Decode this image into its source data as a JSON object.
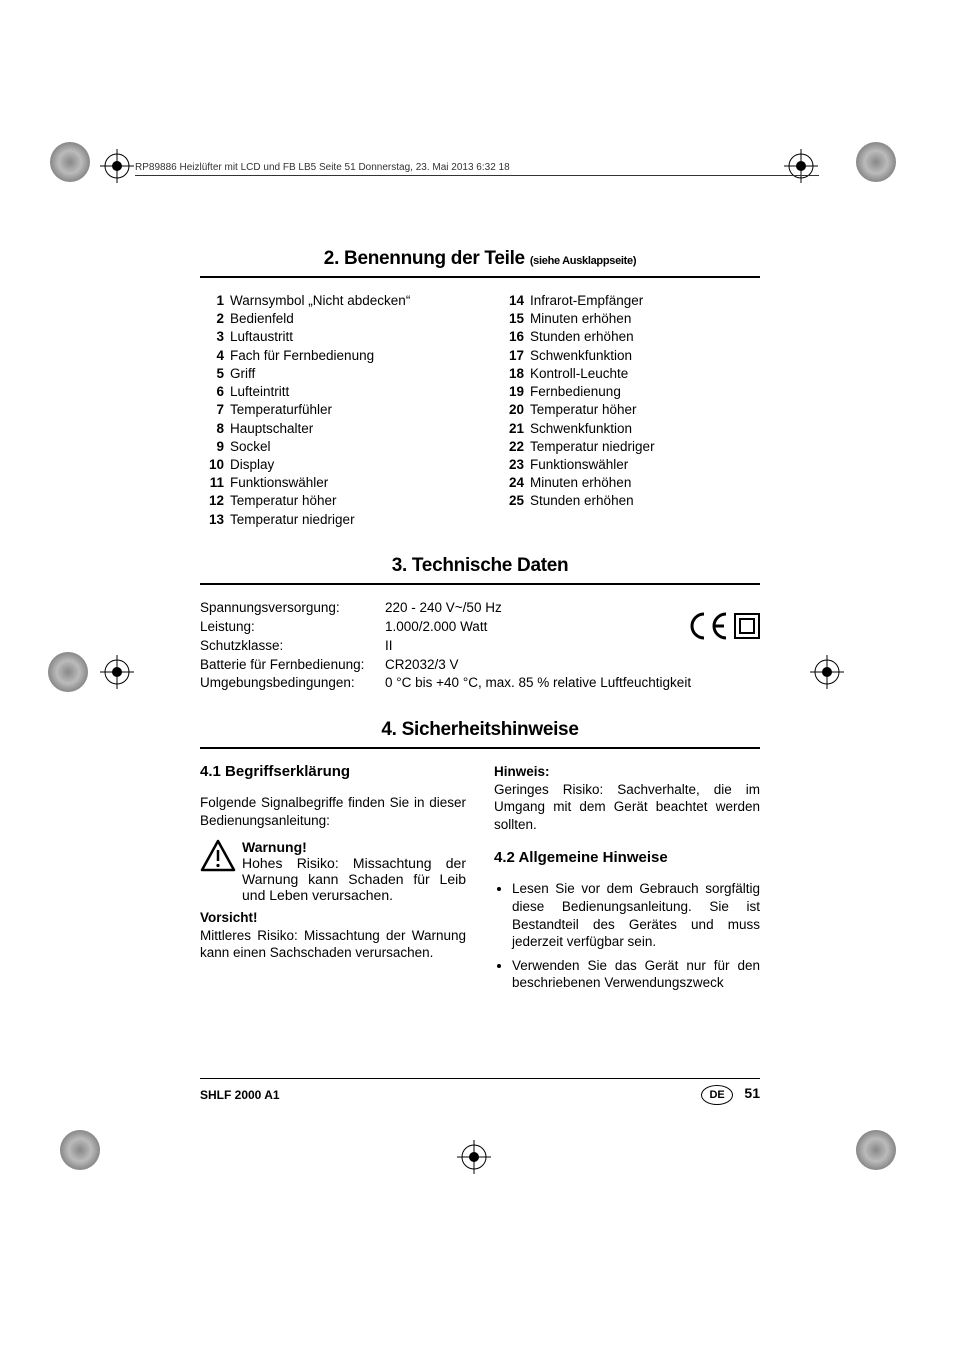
{
  "header": {
    "runner": "RP89886 Heizlüfter mit LCD und FB LB5  Seite 51  Donnerstag, 23. Mai 2013  6:32 18"
  },
  "section2": {
    "title": "2. Benennung der Teile ",
    "sub": "(siehe Ausklappseite)",
    "left": [
      {
        "n": "1",
        "t": "Warnsymbol „Nicht abdecken“"
      },
      {
        "n": "2",
        "t": "Bedienfeld"
      },
      {
        "n": "3",
        "t": "Luftaustritt"
      },
      {
        "n": "4",
        "t": "Fach für Fernbedienung"
      },
      {
        "n": "5",
        "t": "Griff"
      },
      {
        "n": "6",
        "t": "Lufteintritt"
      },
      {
        "n": "7",
        "t": "Temperaturfühler"
      },
      {
        "n": "8",
        "t": "Hauptschalter"
      },
      {
        "n": "9",
        "t": "Sockel"
      },
      {
        "n": "10",
        "t": "Display"
      },
      {
        "n": "11",
        "t": "Funktionswähler"
      },
      {
        "n": "12",
        "t": "Temperatur höher"
      },
      {
        "n": "13",
        "t": "Temperatur niedriger"
      }
    ],
    "right": [
      {
        "n": "14",
        "t": "Infrarot-Empfänger"
      },
      {
        "n": "15",
        "t": "Minuten erhöhen"
      },
      {
        "n": "16",
        "t": "Stunden erhöhen"
      },
      {
        "n": "17",
        "t": "Schwenkfunktion"
      },
      {
        "n": "18",
        "t": "Kontroll-Leuchte"
      },
      {
        "n": "19",
        "t": "Fernbedienung"
      },
      {
        "n": "20",
        "t": "Temperatur höher"
      },
      {
        "n": "21",
        "t": "Schwenkfunktion"
      },
      {
        "n": "22",
        "t": "Temperatur niedriger"
      },
      {
        "n": "23",
        "t": "Funktionswähler"
      },
      {
        "n": "24",
        "t": "Minuten erhöhen"
      },
      {
        "n": "25",
        "t": "Stunden erhöhen"
      }
    ]
  },
  "section3": {
    "title": "3. Technische Daten",
    "rows": [
      {
        "k": "Spannungsversorgung:",
        "v": "220 - 240 V~/50 Hz"
      },
      {
        "k": "Leistung:",
        "v": "1.000/2.000 Watt"
      },
      {
        "k": "Schutzklasse:",
        "v": "II"
      },
      {
        "k": "Batterie für Fernbedienung:",
        "v": "CR2032/3 V"
      },
      {
        "k": "Umgebungsbedingungen:",
        "v": "0 °C bis +40 °C, max. 85 % relative Luftfeuchtigkeit"
      }
    ]
  },
  "section4": {
    "title": "4. Sicherheitshinweise",
    "s41_title": "4.1 Begriffserklärung",
    "s41_intro": "Folgende Signalbegriffe finden Sie in dieser Bedienungsanleitung:",
    "warnung_label": "Warnung!",
    "warnung_text": "Hohes Risiko: Missachtung der Warnung kann Schaden für Leib und Leben verursachen.",
    "vorsicht_label": "Vorsicht!",
    "vorsicht_text": "Mittleres Risiko: Missachtung der Warnung kann einen Sachschaden verursachen.",
    "hinweis_label": "Hinweis:",
    "hinweis_text": "Geringes Risiko: Sachverhalte, die im Umgang mit dem Gerät beachtet werden sollten.",
    "s42_title": "4.2 Allgemeine Hinweise",
    "bullets": [
      "Lesen Sie vor dem Gebrauch sorgfältig diese Bedienungsanleitung. Sie ist Bestandteil des Gerätes und muss jederzeit verfügbar sein.",
      "Verwenden Sie das Gerät nur für den beschriebenen Verwendungszweck"
    ]
  },
  "footer": {
    "model": "SHLF 2000 A1",
    "lang": "DE",
    "page": "51"
  }
}
